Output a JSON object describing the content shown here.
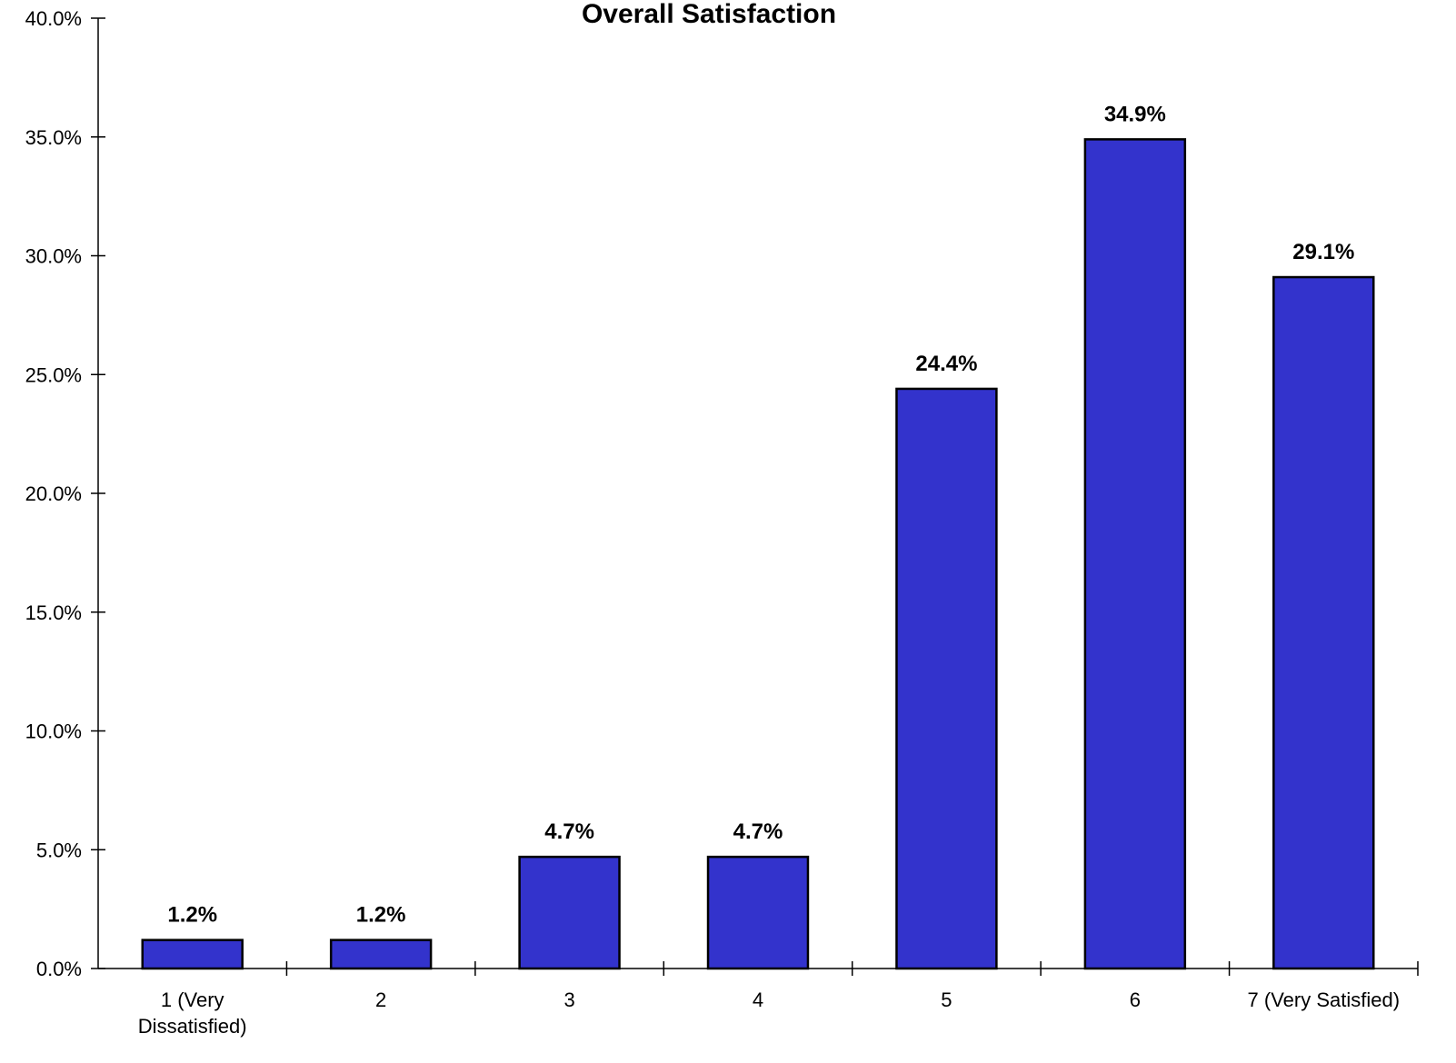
{
  "chart_data": {
    "type": "bar",
    "title": "Overall Satisfaction",
    "xlabel": "",
    "ylabel": "",
    "categories": [
      "1 (Very Dissatisfied)",
      "2",
      "3",
      "4",
      "5",
      "6",
      "7 (Very Satisfied)"
    ],
    "values": [
      1.2,
      1.2,
      4.7,
      4.7,
      24.4,
      34.9,
      29.1
    ],
    "data_labels": [
      "1.2%",
      "1.2%",
      "4.7%",
      "4.7%",
      "24.4%",
      "34.9%",
      "29.1%"
    ],
    "ylim": [
      0,
      40
    ],
    "y_ticks": [
      0,
      5,
      10,
      15,
      20,
      25,
      30,
      35,
      40
    ],
    "y_tick_labels": [
      "0.0%",
      "5.0%",
      "10.0%",
      "15.0%",
      "20.0%",
      "25.0%",
      "30.0%",
      "35.0%",
      "40.0%"
    ],
    "grid": false,
    "legend": "none",
    "bar_color": "#3333CC",
    "bar_edge_color": "#000000"
  }
}
